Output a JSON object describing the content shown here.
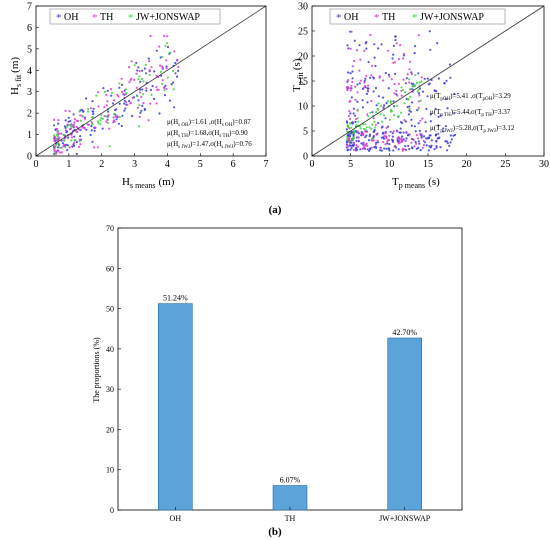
{
  "panel_labels": {
    "a": "(a)",
    "b": "(b)"
  },
  "chart_data": [
    {
      "type": "scatter",
      "ylabel_main": "H",
      "ylabel_sub": "s fit",
      "ylabel_unit": "(m)",
      "xlabel_main": "H",
      "xlabel_sub": "s means",
      "xlabel_unit": "(m)",
      "xlim": [
        0,
        7
      ],
      "ylim": [
        0,
        7
      ],
      "xticks": [
        0,
        1,
        2,
        3,
        4,
        5,
        6,
        7
      ],
      "yticks": [
        0,
        1,
        2,
        3,
        4,
        5,
        6,
        7
      ],
      "reference_line": "y = x",
      "legend": {
        "placement": "top",
        "entries": [
          {
            "label": "OH",
            "color": "#3a3ad8"
          },
          {
            "label": "TH",
            "color": "#d63ad6"
          },
          {
            "label": "JW+JONSWAP",
            "color": "#3ad63a"
          }
        ]
      },
      "annotations": [
        "μ(Hs OH)=1.61 ,σ(Hs OH)=0.87",
        "μ(Hs TH)=1.68,σ(Hs TH)=0.90",
        "μ(Hs JWJ)=1.47,σ(Hs JWJ)=0.76"
      ],
      "series": [
        {
          "name": "OH",
          "color": "#3a3ad8",
          "mu": 1.61,
          "sigma": 0.87
        },
        {
          "name": "TH",
          "color": "#d63ad6",
          "mu": 1.68,
          "sigma": 0.9
        },
        {
          "name": "JW+JONSWAP",
          "color": "#3ad63a",
          "mu": 1.47,
          "sigma": 0.76
        }
      ]
    },
    {
      "type": "scatter",
      "ylabel_main": "T",
      "ylabel_sub": "p fit",
      "ylabel_unit": "(s)",
      "xlabel_main": "T",
      "xlabel_sub": "p means",
      "xlabel_unit": "(s)",
      "xlim": [
        0,
        30
      ],
      "ylim": [
        0,
        30
      ],
      "xticks": [
        0,
        5,
        10,
        15,
        20,
        25,
        30
      ],
      "yticks": [
        0,
        5,
        10,
        15,
        20,
        25,
        30
      ],
      "reference_line": "y = x",
      "legend": {
        "placement": "top",
        "entries": [
          {
            "label": "OH",
            "color": "#3a3ad8"
          },
          {
            "label": "TH",
            "color": "#d63ad6"
          },
          {
            "label": "JW+JONSWAP",
            "color": "#3ad63a"
          }
        ]
      },
      "annotations": [
        "μ(Tp OH)=5.41 ,σ(Tp OH)=3.29",
        "μ(Tp TH)=5.44,σ(Tp TH)=3.37",
        "μ(Tp JWJ)=5.28,σ(Tp JWJ)=3.12"
      ],
      "series": [
        {
          "name": "OH",
          "color": "#3a3ad8",
          "mu": 5.41,
          "sigma": 3.29
        },
        {
          "name": "TH",
          "color": "#d63ad6",
          "mu": 5.44,
          "sigma": 3.37
        },
        {
          "name": "JW+JONSWAP",
          "color": "#3ad63a",
          "mu": 5.28,
          "sigma": 3.12
        }
      ]
    },
    {
      "type": "bar",
      "ylabel": "The proportions (%)",
      "ylim": [
        0,
        70
      ],
      "yticks": [
        0,
        10,
        20,
        30,
        40,
        50,
        60,
        70
      ],
      "categories": [
        "OH",
        "TH",
        "JW+JONSWAP"
      ],
      "values": [
        51.24,
        6.07,
        42.7
      ],
      "data_labels": [
        "51.24%",
        "6.07%",
        "42.70%"
      ],
      "bar_color": "#5ba3d9"
    }
  ]
}
